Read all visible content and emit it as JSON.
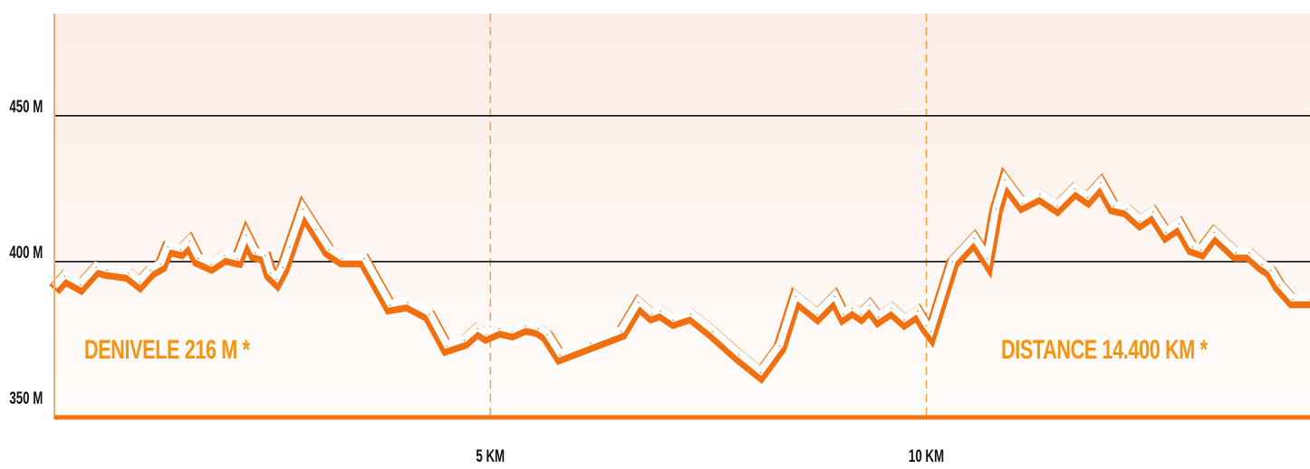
{
  "chart_data": {
    "type": "area",
    "x_unit": "KM",
    "y_unit": "M",
    "x_range": [
      0,
      14.4
    ],
    "y_range": [
      346,
      485
    ],
    "y_ticks": [
      {
        "value": 350,
        "label": "350 M"
      },
      {
        "value": 400,
        "label": "400 M"
      },
      {
        "value": 450,
        "label": "450 M"
      }
    ],
    "x_ticks": [
      {
        "value": 5,
        "label": "5 KM"
      },
      {
        "value": 10,
        "label": "10 KM"
      }
    ],
    "gridlines_y": [
      400,
      450
    ],
    "gridlines_x_dashed": [
      5,
      10
    ],
    "annotations": {
      "denivele": "DENIVELE  216 M *",
      "distance": "DISTANCE  14.400 KM *"
    },
    "series": [
      {
        "x": [
          0.0,
          0.12,
          0.3,
          0.48,
          0.6,
          0.85,
          0.98,
          1.1,
          1.22,
          1.3,
          1.45,
          1.55,
          1.65,
          1.8,
          1.95,
          2.1,
          2.2,
          2.3,
          2.42,
          2.48,
          2.55,
          2.62,
          2.7,
          2.85,
          3.0,
          3.15,
          3.3,
          3.55,
          3.85,
          4.05,
          4.3,
          4.5,
          4.7,
          4.85,
          4.95,
          5.1,
          5.25,
          5.4,
          5.55,
          5.65,
          5.8,
          6.15,
          6.5,
          6.7,
          6.85,
          6.95,
          7.1,
          7.3,
          7.55,
          7.85,
          8.1,
          8.32,
          8.5,
          8.75,
          8.95,
          9.05,
          9.15,
          9.25,
          9.35,
          9.45,
          9.6,
          9.75,
          9.9,
          10.0,
          10.05,
          10.3,
          10.55,
          10.7,
          10.8,
          10.9,
          11.1,
          11.3,
          11.5,
          11.7,
          11.85,
          12.0,
          12.15,
          12.3,
          12.45,
          12.6,
          12.75,
          12.9,
          13.05,
          13.15,
          13.3,
          13.55,
          13.7,
          13.85,
          13.95,
          14.05,
          14.2,
          14.4
        ],
        "y": [
          391,
          395,
          392,
          398,
          397,
          396,
          393,
          397,
          399,
          405,
          404,
          407,
          401,
          399,
          402,
          401,
          409,
          403,
          402,
          396,
          394,
          398,
          405,
          418,
          411,
          404,
          401,
          401,
          385,
          386,
          382,
          371,
          373,
          377,
          375,
          377,
          376,
          378,
          377,
          375,
          368,
          372,
          376,
          386,
          382,
          383,
          380,
          382,
          376,
          368,
          362,
          371,
          388,
          382,
          388,
          382,
          384,
          382,
          385,
          381,
          384,
          380,
          383,
          378,
          376,
          400,
          408,
          401,
          418,
          428,
          420,
          423,
          419,
          425,
          422,
          427,
          419,
          418,
          414,
          417,
          410,
          413,
          405,
          404,
          410,
          403,
          403,
          399,
          397,
          392,
          387,
          387
        ]
      }
    ]
  }
}
